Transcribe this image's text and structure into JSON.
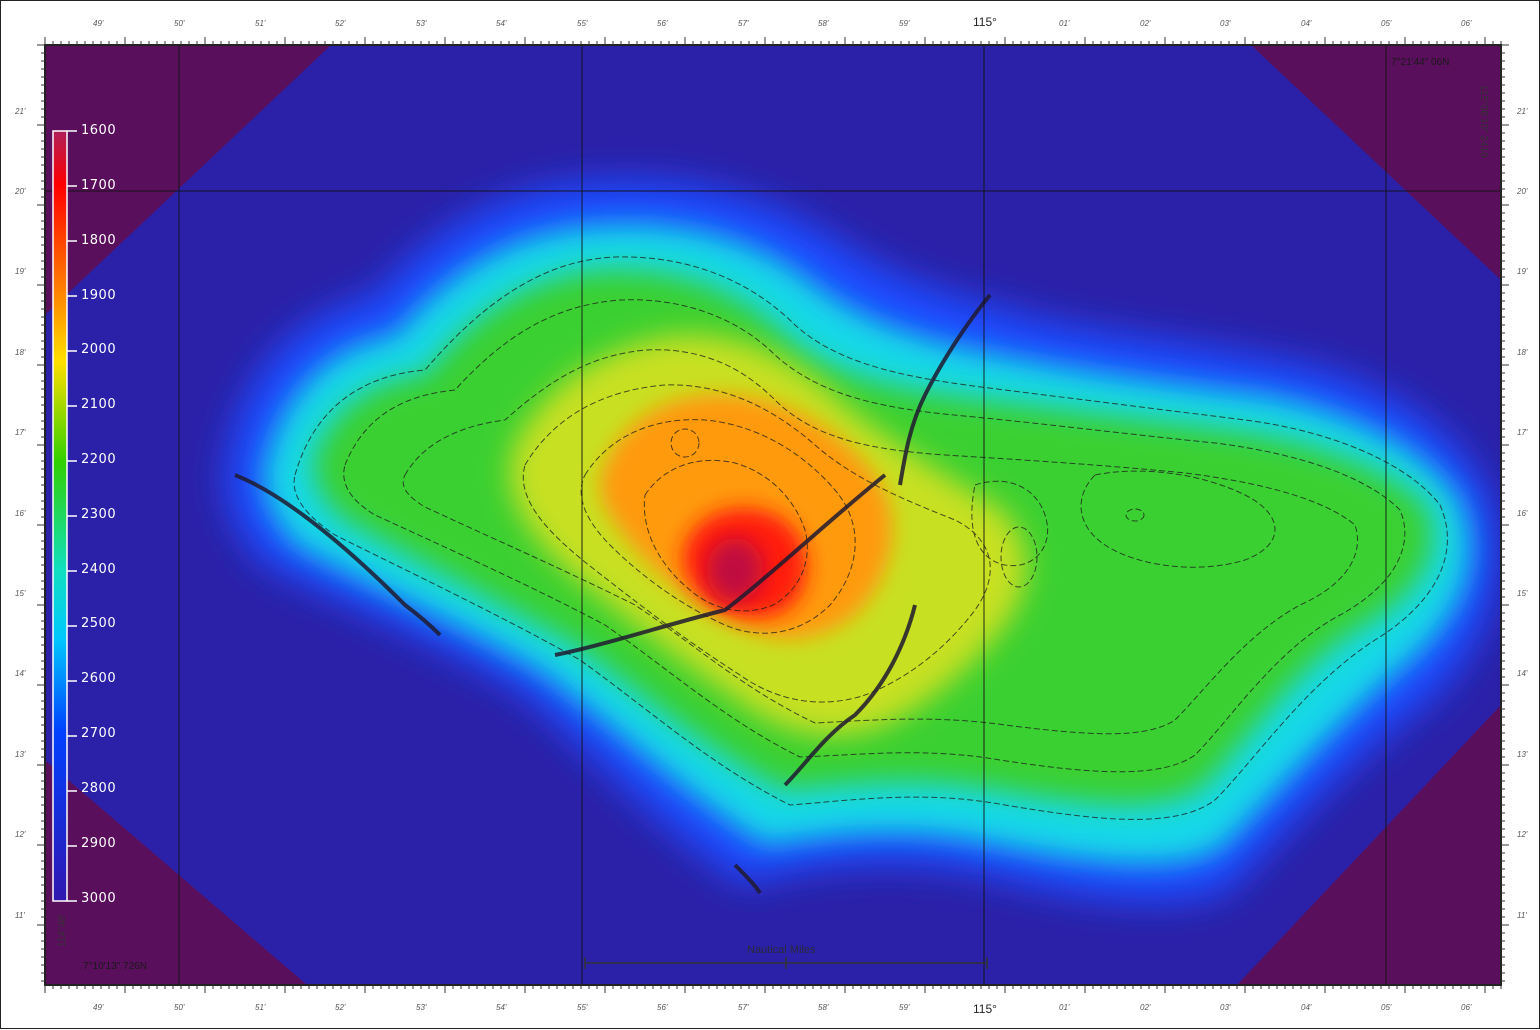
{
  "map": {
    "top_center_lon_label": "115°",
    "bottom_center_lon_label": "115°",
    "top_right_coord": "7°21'44\" 06N",
    "bottom_left_coord": "7°10'13\" 726N",
    "right_vertical_coord": "115°06'10\" 2410",
    "left_vertical_coord": "114°48'",
    "scale_bar_title": "Nautical Miles",
    "minute_labels_top": [
      "49'",
      "50'",
      "51'",
      "52'",
      "53'",
      "54'",
      "55'",
      "56'",
      "57'",
      "58'",
      "59'",
      "",
      "01'",
      "02'",
      "03'",
      "04'",
      "05'",
      "06'"
    ],
    "minute_labels_left": [
      "21'",
      "20'",
      "19'",
      "18'",
      "17'",
      "16'",
      "15'",
      "14'",
      "13'",
      "12'",
      "11'"
    ],
    "colors": {
      "deep": "#2a1fa6",
      "corner": "#5a0f5c",
      "frame": "#222222"
    }
  },
  "legend": {
    "title": "Depth",
    "labels": [
      "1600",
      "1700",
      "1800",
      "1900",
      "2000",
      "2100",
      "2200",
      "2300",
      "2400",
      "2500",
      "2600",
      "2700",
      "2800",
      "2900",
      "3000"
    ]
  }
}
